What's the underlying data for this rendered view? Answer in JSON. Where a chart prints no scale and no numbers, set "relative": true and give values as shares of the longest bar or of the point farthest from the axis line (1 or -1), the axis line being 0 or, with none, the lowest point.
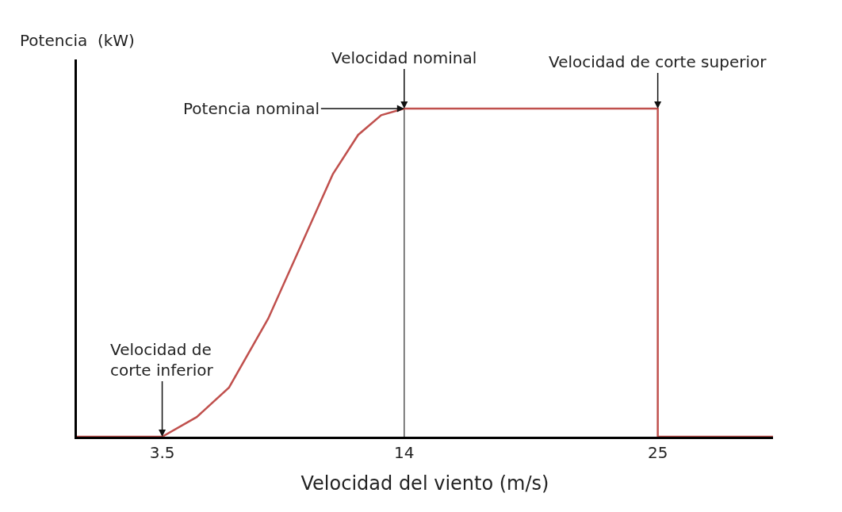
{
  "chart_data": {
    "type": "line",
    "relative": true,
    "xlabel": "Velocidad del viento (m/s)",
    "ylabel": "Potencia  (kW)",
    "xlim": [
      -0.2,
      30
    ],
    "xticks": [
      3.5,
      14,
      25
    ],
    "grid": false,
    "marker": "none",
    "line_style": "solid",
    "series": [
      {
        "color": "#c0504d",
        "x": [
          -0.2,
          3.5,
          5,
          6.4,
          8.1,
          9.5,
          10.9,
          12,
          13,
          14,
          15,
          25,
          25,
          30
        ],
        "values": [
          0,
          0,
          0.06,
          0.15,
          0.36,
          0.58,
          0.8,
          0.92,
          0.98,
          1,
          1,
          1,
          0,
          0
        ]
      }
    ],
    "ref_lines": [
      {
        "axis": "x",
        "value": 14,
        "color": "#555555"
      }
    ],
    "annotations": [
      {
        "text": "Velocidad nominal",
        "x": 14,
        "y": 1
      },
      {
        "text": "Potencia nominal",
        "x": 14,
        "y": 1
      },
      {
        "text": "Velocidad de corte superior",
        "x": 25,
        "y": 1
      },
      {
        "text": "Velocidad de\ncorte inferior",
        "x": 3.5,
        "y": 0
      }
    ]
  }
}
